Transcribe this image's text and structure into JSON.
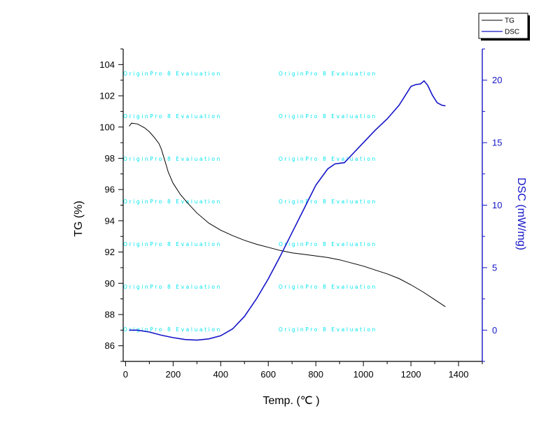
{
  "chart_data": {
    "type": "line",
    "xlabel": "Temp. (℃ )",
    "ylabel_left": "TG (%)",
    "ylabel_right": "DSC (mW/mg)",
    "xlim": [
      -10,
      1500
    ],
    "ylim_left": [
      85,
      105
    ],
    "ylim_right": [
      -2.5,
      22.5
    ],
    "x_ticks": [
      0,
      200,
      400,
      600,
      800,
      1000,
      1200,
      1400
    ],
    "y_left_ticks": [
      86,
      88,
      90,
      92,
      94,
      96,
      98,
      100,
      102,
      104
    ],
    "y_right_ticks": [
      0,
      5,
      10,
      15,
      20
    ],
    "legend_placement": "top-right, outside plot",
    "watermark": "OriginPro 8 Evaluation",
    "colors": {
      "TG": "#000000",
      "DSC": "#1414c8",
      "watermark": "#00e5ee",
      "axis": "#000000",
      "right_axis": "#1414c8"
    },
    "series": [
      {
        "name": "TG",
        "axis": "left",
        "x": [
          15,
          25,
          50,
          80,
          100,
          120,
          140,
          150,
          160,
          170,
          180,
          200,
          230,
          260,
          300,
          350,
          400,
          450,
          500,
          550,
          600,
          650,
          700,
          750,
          800,
          850,
          900,
          950,
          1000,
          1050,
          1100,
          1150,
          1200,
          1250,
          1300,
          1345
        ],
        "values": [
          100.05,
          100.25,
          100.2,
          99.95,
          99.7,
          99.35,
          98.95,
          98.6,
          98.1,
          97.6,
          97.1,
          96.4,
          95.7,
          95.15,
          94.5,
          93.85,
          93.4,
          93.05,
          92.75,
          92.5,
          92.3,
          92.1,
          91.95,
          91.85,
          91.75,
          91.65,
          91.5,
          91.3,
          91.1,
          90.85,
          90.6,
          90.3,
          89.9,
          89.45,
          88.95,
          88.5
        ]
      },
      {
        "name": "DSC",
        "axis": "right",
        "x": [
          15,
          50,
          100,
          150,
          200,
          250,
          300,
          350,
          400,
          450,
          500,
          550,
          600,
          650,
          700,
          750,
          800,
          850,
          880,
          900,
          920,
          950,
          1000,
          1050,
          1100,
          1150,
          1180,
          1200,
          1220,
          1240,
          1255,
          1270,
          1290,
          1310,
          1330,
          1345
        ],
        "values": [
          0.0,
          0.0,
          -0.15,
          -0.4,
          -0.6,
          -0.75,
          -0.8,
          -0.7,
          -0.45,
          0.1,
          1.1,
          2.5,
          4.1,
          5.9,
          7.8,
          9.7,
          11.6,
          12.9,
          13.3,
          13.35,
          13.4,
          14.0,
          15.0,
          16.0,
          16.9,
          18.0,
          18.9,
          19.5,
          19.65,
          19.7,
          19.95,
          19.6,
          18.8,
          18.2,
          18.0,
          17.95
        ]
      }
    ]
  }
}
